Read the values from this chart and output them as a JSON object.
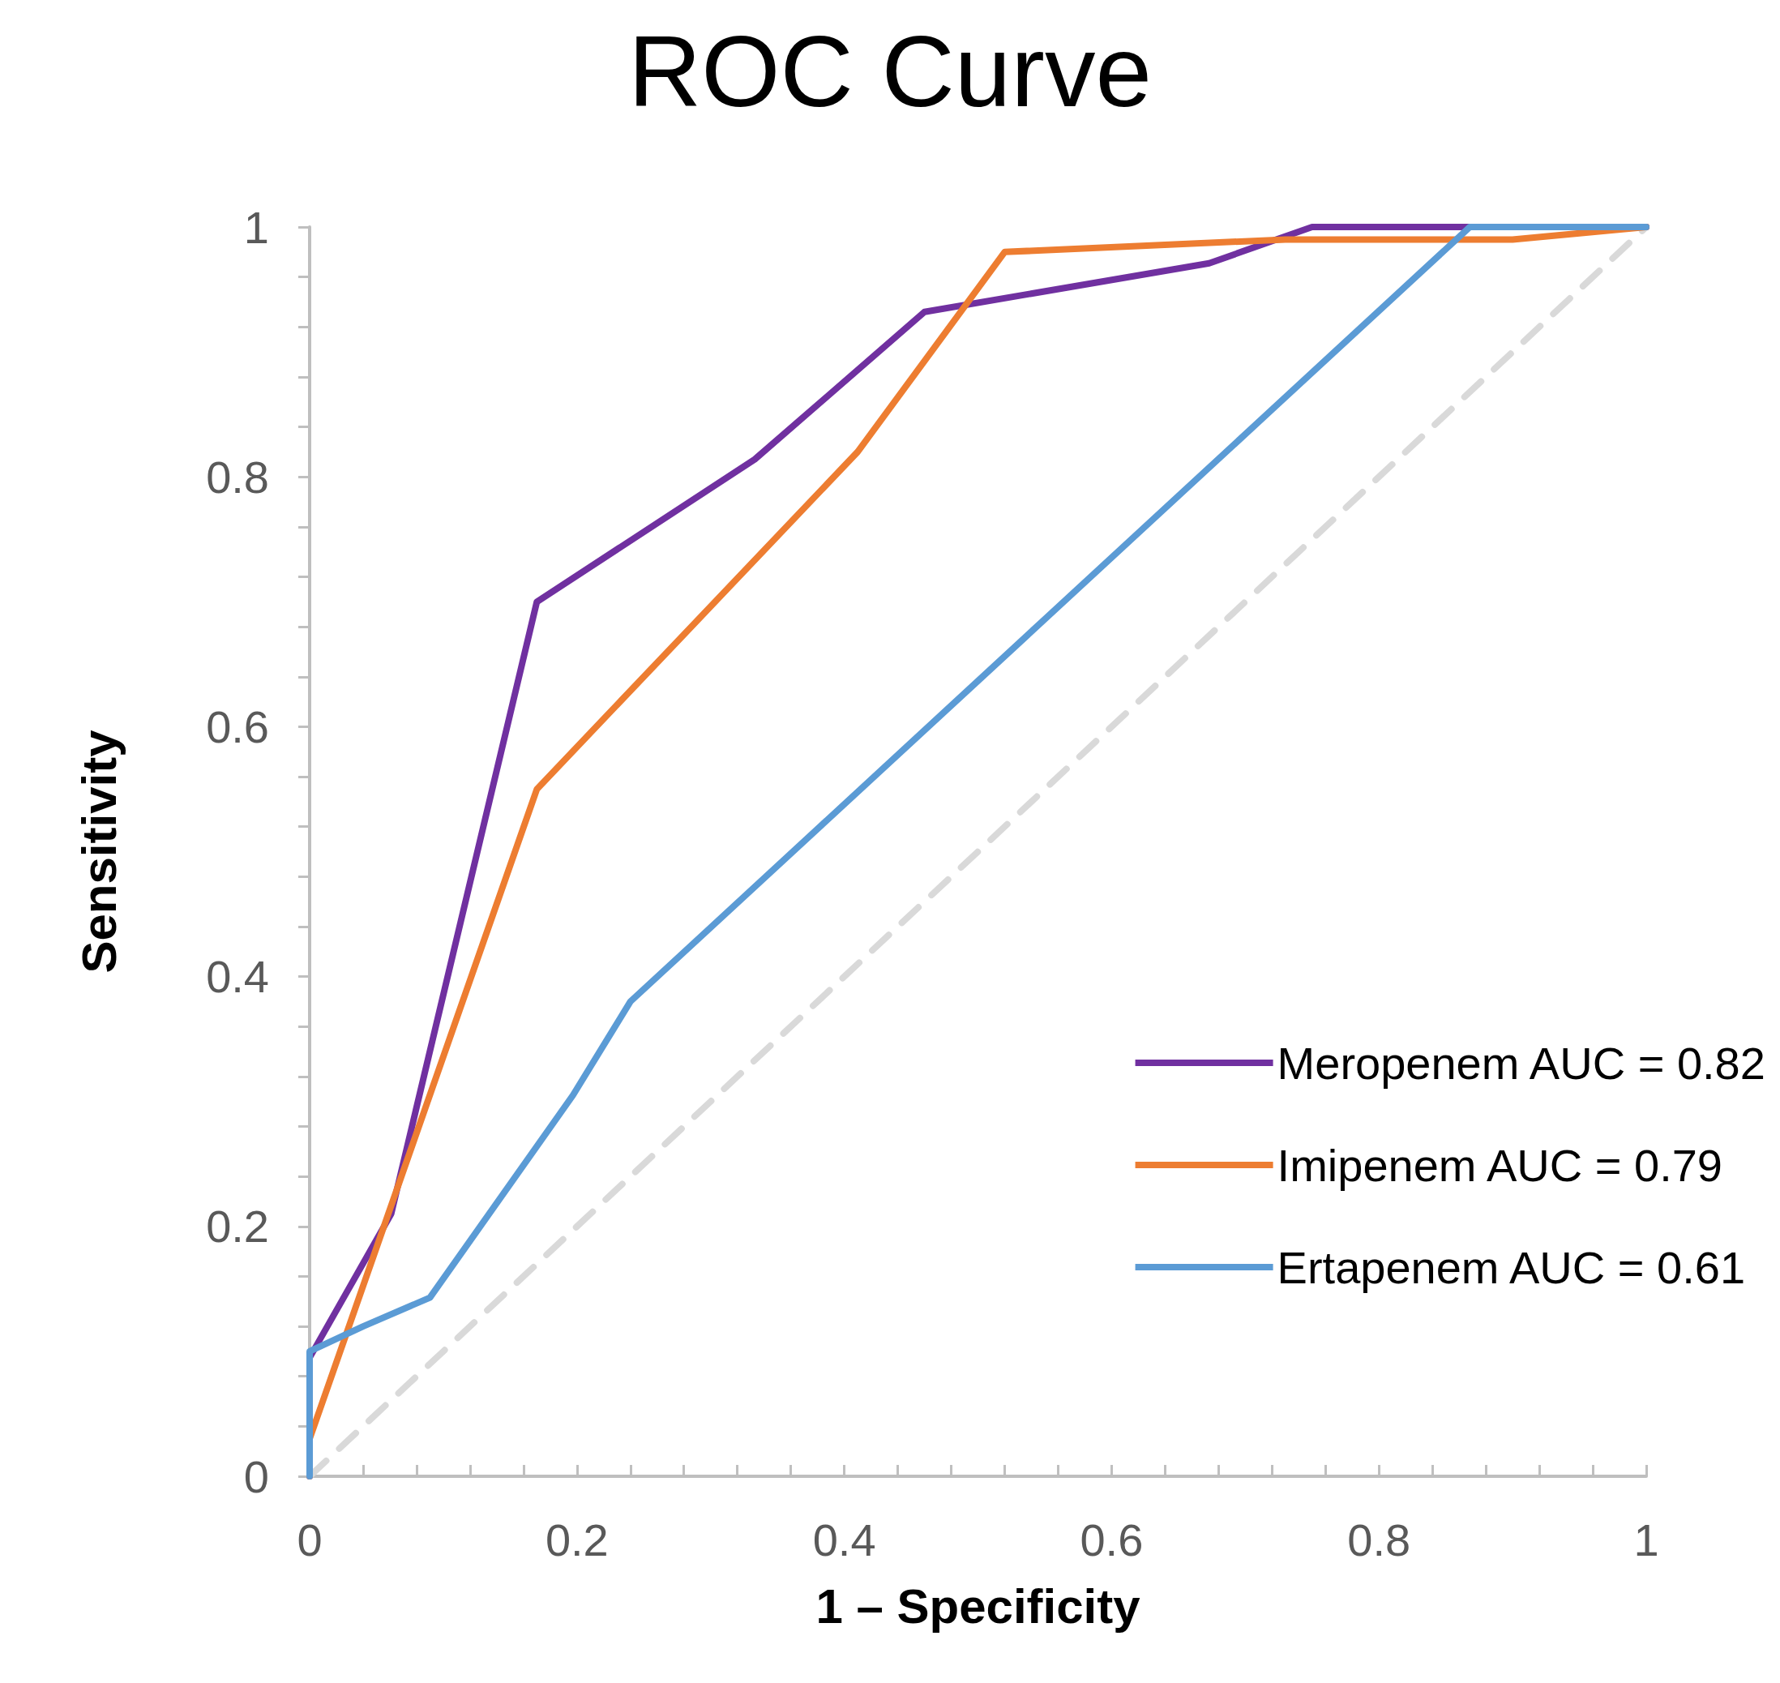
{
  "chart_data": {
    "type": "line",
    "title": "ROC Curve",
    "xlabel": "1 – Specificity",
    "ylabel": "Sensitivity",
    "xlim": [
      0,
      1
    ],
    "ylim": [
      0,
      1
    ],
    "xticks": [
      0,
      0.2,
      0.4,
      0.6,
      0.8,
      1
    ],
    "yticks": [
      0,
      0.2,
      0.4,
      0.6,
      0.8,
      1
    ],
    "grid": false,
    "legend": "bottom right",
    "marker": "none",
    "series": [
      {
        "name": "Meropenem AUC = 0.82",
        "color": "#7030a0",
        "x": [
          0,
          0,
          0.061,
          0.17,
          0.333,
          0.46,
          0.673,
          0.75,
          1
        ],
        "values": [
          0,
          0.095,
          0.21,
          0.7,
          0.814,
          0.932,
          0.971,
          1,
          1
        ]
      },
      {
        "name": "Imipenem AUC = 0.79",
        "color": "#ed7d31",
        "x": [
          0,
          0,
          0.17,
          0.41,
          0.52,
          0.73,
          0.9,
          1
        ],
        "values": [
          0,
          0.03,
          0.55,
          0.82,
          0.98,
          0.99,
          0.99,
          1
        ]
      },
      {
        "name": "Ertapenem AUC = 0.61",
        "color": "#5b9bd5",
        "x": [
          0,
          0,
          0.04,
          0.09,
          0.197,
          0.24,
          0.868,
          1
        ],
        "values": [
          0,
          0.1,
          0.12,
          0.143,
          0.305,
          0.38,
          1,
          1
        ]
      },
      {
        "color": "#d9d9d9",
        "line_style": "dashed",
        "x": [
          0,
          1
        ],
        "values": [
          0,
          1
        ]
      }
    ]
  }
}
